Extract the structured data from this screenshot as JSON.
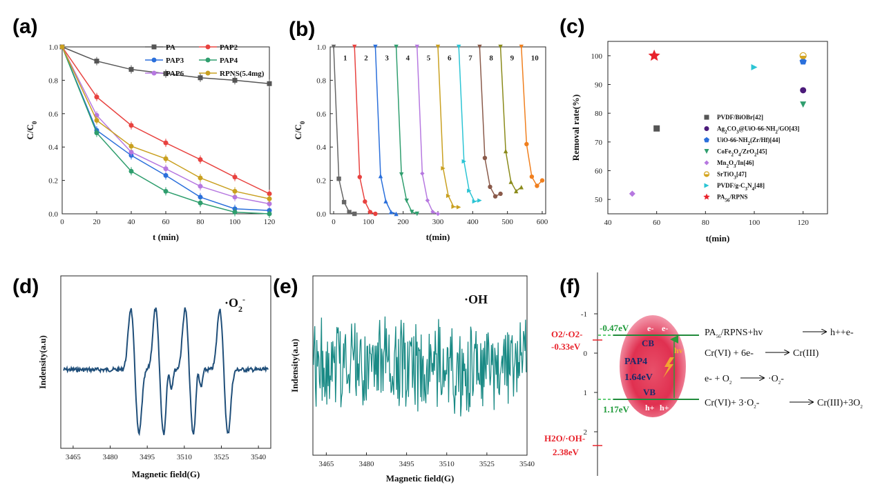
{
  "panels": {
    "a": "(a)",
    "b": "(b)",
    "c": "(c)",
    "d": "(d)",
    "e": "(e)",
    "f": "(f)"
  },
  "chart_data": [
    {
      "id": "a",
      "type": "line",
      "xlabel": "t (min)",
      "ylabel": "C/C0",
      "xlim": [
        0,
        120
      ],
      "ylim": [
        0,
        1.0
      ],
      "xticks": [
        "0",
        "20",
        "40",
        "60",
        "80",
        "100",
        "120"
      ],
      "yticks": [
        "0.0",
        "0.2",
        "0.4",
        "0.6",
        "0.8",
        "1.0"
      ],
      "x": [
        0,
        20,
        40,
        60,
        80,
        100,
        120
      ],
      "series": [
        {
          "name": "PA",
          "color": "#555555",
          "marker": "square",
          "values": [
            1.0,
            0.915,
            0.865,
            0.84,
            0.815,
            0.8,
            0.78
          ]
        },
        {
          "name": "PAP2",
          "color": "#e8423f",
          "marker": "circle",
          "values": [
            1.0,
            0.7,
            0.53,
            0.425,
            0.325,
            0.22,
            0.12
          ]
        },
        {
          "name": "PAP3",
          "color": "#2a6fdb",
          "marker": "circle",
          "values": [
            1.0,
            0.5,
            0.35,
            0.23,
            0.1,
            0.03,
            0.02
          ]
        },
        {
          "name": "PAP4",
          "color": "#2f9e6e",
          "marker": "circle",
          "values": [
            1.0,
            0.485,
            0.255,
            0.135,
            0.065,
            0.01,
            0.0
          ]
        },
        {
          "name": "PAP6",
          "color": "#b678e0",
          "marker": "circle",
          "values": [
            1.0,
            0.59,
            0.37,
            0.27,
            0.165,
            0.1,
            0.06
          ]
        },
        {
          "name": "RPNS(5.4mg)",
          "color": "#c9a020",
          "marker": "circle",
          "values": [
            1.0,
            0.56,
            0.405,
            0.33,
            0.215,
            0.135,
            0.09
          ]
        }
      ]
    },
    {
      "id": "b",
      "type": "line",
      "xlabel": "t(min)",
      "ylabel": "C/C0",
      "xlim": [
        0,
        600
      ],
      "ylim": [
        0,
        1.0
      ],
      "xticks": [
        "0",
        "100",
        "200",
        "300",
        "400",
        "500",
        "600"
      ],
      "yticks": [
        "0.0",
        "0.2",
        "0.4",
        "0.6",
        "0.8",
        "1.0"
      ],
      "cycle_labels": [
        "1",
        "2",
        "3",
        "4",
        "5",
        "6",
        "7",
        "8",
        "9",
        "10"
      ],
      "cycle_values": [
        1.0,
        0.21,
        0.07,
        0.01,
        0.0
      ],
      "cycle_start_x": [
        0,
        60,
        120,
        180,
        240,
        300,
        360,
        420,
        480,
        540
      ],
      "cycle_step": 15,
      "colors": [
        "#666666",
        "#e8423f",
        "#2a6fdb",
        "#2f9e6e",
        "#b678e0",
        "#c9a020",
        "#2bc4d4",
        "#8a5a4a",
        "#8a8a1a",
        "#f07f1e"
      ],
      "cycle_scale": [
        1.0,
        1.05,
        1.08,
        1.12,
        1.15,
        1.25,
        1.4,
        1.45,
        1.6,
        1.75
      ]
    },
    {
      "id": "c",
      "type": "scatter",
      "xlabel": "t(min)",
      "ylabel": "Removal rate(%)",
      "xlim": [
        40,
        130
      ],
      "ylim": [
        45,
        105
      ],
      "xticks": [
        "40",
        "60",
        "80",
        "100",
        "120"
      ],
      "yticks": [
        "50",
        "60",
        "70",
        "80",
        "90",
        "100"
      ],
      "points": [
        {
          "name": "PVDF/BiOBr[42]",
          "x": 60,
          "y": 74.7,
          "color": "#555555",
          "marker": "square"
        },
        {
          "name": "Ag2CO3@UiO-66-NH2/GO[43]",
          "x": 120,
          "y": 88,
          "color": "#4b1a7a",
          "marker": "circle"
        },
        {
          "name": "UiO-66-NH2(Zr/Hf)[44]",
          "x": 120,
          "y": 98,
          "color": "#2a6fdb",
          "marker": "pentagon"
        },
        {
          "name": "CoFe2O4/ZrO2[45]",
          "x": 120,
          "y": 83,
          "color": "#2f9e6e",
          "marker": "triangle-down"
        },
        {
          "name": "Mn2O3/In[46]",
          "x": 50,
          "y": 52,
          "color": "#b678e0",
          "marker": "diamond"
        },
        {
          "name": "SrTiO3[47]",
          "x": 120,
          "y": 100,
          "color": "#d4a520",
          "marker": "half-circle"
        },
        {
          "name": "PVDF/g-C3N4[48]",
          "x": 100,
          "y": 96,
          "color": "#2bc4d4",
          "marker": "triangle-right"
        },
        {
          "name": "PA56/RPNS",
          "x": 59,
          "y": 100,
          "color": "#e8222b",
          "marker": "star"
        }
      ]
    },
    {
      "id": "d",
      "type": "line",
      "title": "·O2-",
      "xlabel": "Magnetic field(G)",
      "ylabel": "Indensity(a.u)",
      "xlim": [
        3460,
        3545
      ],
      "xticks": [
        "3465",
        "3480",
        "3495",
        "3510",
        "3525",
        "3540"
      ],
      "color": "#1f4e79",
      "peaks": [
        3490,
        3500,
        3512,
        3526
      ],
      "side_peaks": [
        3504,
        3516
      ]
    },
    {
      "id": "e",
      "type": "line",
      "title": "·OH",
      "xlabel": "Magnetic field(G)",
      "ylabel": "Indensity(a.u)",
      "xlim": [
        3460,
        3540
      ],
      "xticks": [
        "3465",
        "3480",
        "3495",
        "3510",
        "3525",
        "3540"
      ],
      "color": "#1a8a85"
    },
    {
      "id": "f",
      "type": "diagram",
      "yticks": [
        "-1",
        "0",
        "1",
        "2"
      ],
      "cb_label": "-0.47eV",
      "vb_label": "1.17eV",
      "o2_label": "O2/·O2-",
      "o2_value": "-0.33eV",
      "oh_label": "H2O/·OH-",
      "oh_value": "2.38eV",
      "cb": "CB",
      "vb": "VB",
      "material": "PAP4",
      "gap": "1.64eV",
      "hv": "hv",
      "electron": "e-",
      "hole": "h+",
      "reactions": [
        {
          "left": "PA56/RPNS+hv",
          "right": "h++e-"
        },
        {
          "left": "Cr(VI) + 6e-",
          "right": "Cr(III)"
        },
        {
          "left": "e- + O2",
          "right": "·O2-"
        },
        {
          "left": "Cr(VI)+ 3·O2-",
          "right": "Cr(III)+3O2"
        }
      ]
    }
  ]
}
